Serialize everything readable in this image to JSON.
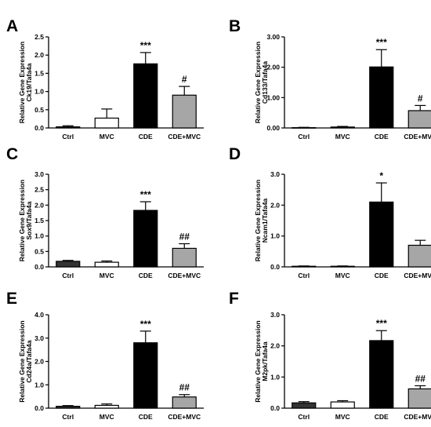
{
  "colors": {
    "Ctrl": "#333333",
    "MVC": "#ffffff",
    "CDE": "#000000",
    "CDE+MVC": "#a6a6a6",
    "stroke": "#000000"
  },
  "chart_data": [
    {
      "type": "bar",
      "panel": "A",
      "ylabel_line1": "Relative Gene Expression",
      "ylabel_line2": "Ck19/Tafa4a",
      "categories": [
        "Ctrl",
        "MVC",
        "CDE",
        "CDE+MVC"
      ],
      "values": [
        0.03,
        0.27,
        1.76,
        0.9
      ],
      "errors": [
        0.03,
        0.25,
        0.31,
        0.24
      ],
      "annotations": [
        "",
        "",
        "***",
        "#"
      ],
      "ylim": [
        0,
        2.5
      ],
      "yticks": [
        "0.0",
        "0.5",
        "1.0",
        "1.5",
        "2.0",
        "2.5"
      ]
    },
    {
      "type": "bar",
      "panel": "B",
      "ylabel_line1": "Relative Gene Expression",
      "ylabel_line2": "Cd133/Tafa4a",
      "categories": [
        "Ctrl",
        "MVC",
        "CDE",
        "CDE+MVC"
      ],
      "values": [
        0.01,
        0.03,
        2.01,
        0.57
      ],
      "errors": [
        0.01,
        0.02,
        0.57,
        0.17
      ],
      "annotations": [
        "",
        "",
        "***",
        "#"
      ],
      "ylim": [
        0,
        3.0
      ],
      "yticks": [
        "0.00",
        "1.00",
        "2.00",
        "3.00"
      ]
    },
    {
      "type": "bar",
      "panel": "C",
      "ylabel_line1": "Relative Gene Expression",
      "ylabel_line2": "Sox9/Tafa4a",
      "categories": [
        "Ctrl",
        "MVC",
        "CDE",
        "CDE+MVC"
      ],
      "values": [
        0.18,
        0.15,
        1.83,
        0.6
      ],
      "errors": [
        0.03,
        0.04,
        0.28,
        0.15
      ],
      "annotations": [
        "",
        "",
        "***",
        "##"
      ],
      "ylim": [
        0,
        3.0
      ],
      "yticks": [
        "0.0",
        "0.5",
        "1.0",
        "1.5",
        "2.0",
        "2.5",
        "3.0"
      ]
    },
    {
      "type": "bar",
      "panel": "D",
      "ylabel_line1": "Relative Gene Expression",
      "ylabel_line2": "Ncam1/Tafa4a",
      "categories": [
        "Ctrl",
        "MVC",
        "CDE",
        "CDE+MVC"
      ],
      "values": [
        0.02,
        0.02,
        2.1,
        0.7
      ],
      "errors": [
        0.01,
        0.01,
        0.62,
        0.16
      ],
      "annotations": [
        "",
        "",
        "*",
        ""
      ],
      "ylim": [
        0,
        3.0
      ],
      "yticks": [
        "0.0",
        "1.0",
        "2.0",
        "3.0"
      ]
    },
    {
      "type": "bar",
      "panel": "E",
      "ylabel_line1": "Relative Gene Expression",
      "ylabel_line2": "Cd24a/Tafa4a",
      "categories": [
        "Ctrl",
        "MVC",
        "CDE",
        "CDE+MVC"
      ],
      "values": [
        0.08,
        0.12,
        2.8,
        0.48
      ],
      "errors": [
        0.03,
        0.06,
        0.5,
        0.1
      ],
      "annotations": [
        "",
        "",
        "***",
        "##"
      ],
      "ylim": [
        0,
        4.0
      ],
      "yticks": [
        "0.0",
        "1.0",
        "2.0",
        "3.0",
        "4.0"
      ]
    },
    {
      "type": "bar",
      "panel": "F",
      "ylabel_line1": "Relative Gene Expression",
      "ylabel_line2": "M2pk/Tafa4a",
      "categories": [
        "Ctrl",
        "MVC",
        "CDE",
        "CDE+MVC"
      ],
      "values": [
        0.17,
        0.2,
        2.17,
        0.62
      ],
      "errors": [
        0.04,
        0.04,
        0.32,
        0.1
      ],
      "annotations": [
        "",
        "",
        "***",
        "##"
      ],
      "ylim": [
        0,
        3.0
      ],
      "yticks": [
        "0.0",
        "1.0",
        "2.0",
        "3.0"
      ]
    }
  ]
}
